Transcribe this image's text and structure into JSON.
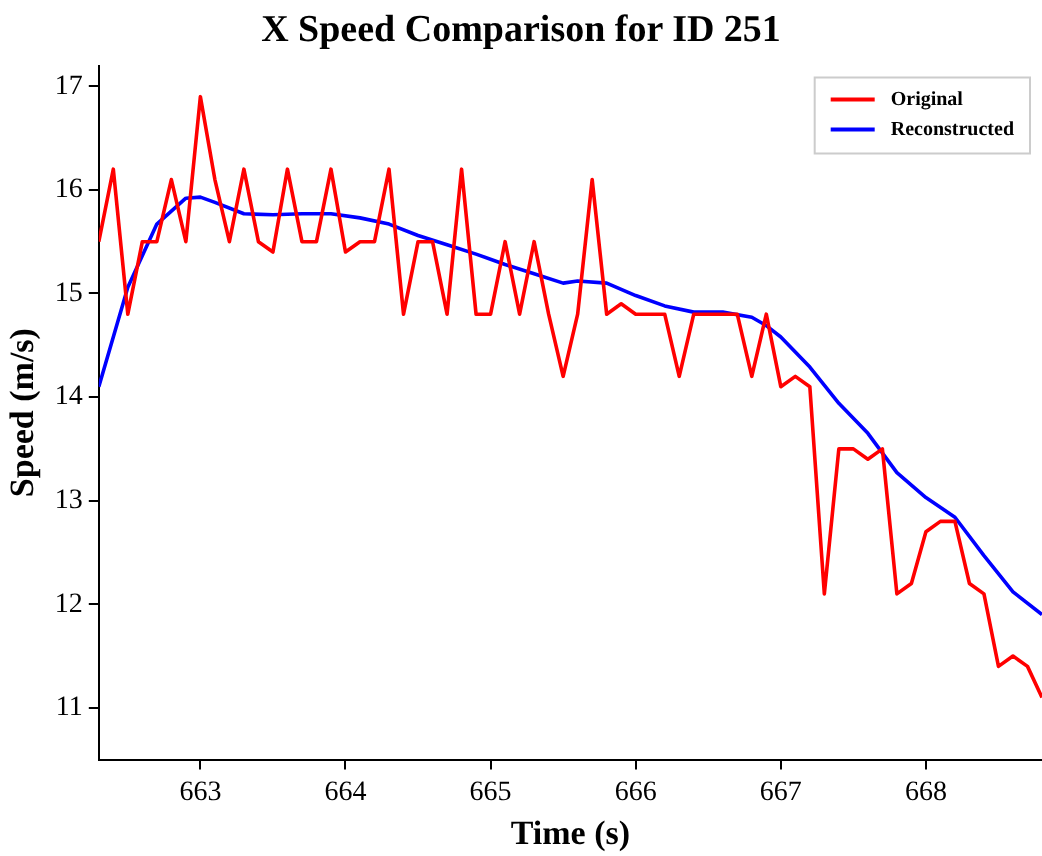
{
  "chart_data": {
    "type": "line",
    "title": "X Speed Comparison for ID 251",
    "xlabel": "Time (s)",
    "ylabel": "Speed (m/s)",
    "xlim": [
      662.3,
      668.8
    ],
    "xticks": [
      663,
      664,
      665,
      666,
      667,
      668
    ],
    "ylim": [
      10.5,
      17.2
    ],
    "yticks": [
      11,
      12,
      13,
      14,
      15,
      16,
      17
    ],
    "grid": false,
    "legend": "top right",
    "marker": "none",
    "line_style": "solid",
    "series": [
      {
        "name": "Original",
        "color": "#ff0000",
        "x": [
          662.3,
          662.4,
          662.5,
          662.6,
          662.7,
          662.8,
          662.9,
          663.0,
          663.1,
          663.2,
          663.3,
          663.4,
          663.5,
          663.6,
          663.7,
          663.8,
          663.9,
          664.0,
          664.1,
          664.2,
          664.3,
          664.4,
          664.5,
          664.6,
          664.7,
          664.8,
          664.9,
          665.0,
          665.1,
          665.2,
          665.3,
          665.4,
          665.5,
          665.6,
          665.7,
          665.8,
          665.9,
          666.0,
          666.1,
          666.2,
          666.3,
          666.4,
          666.5,
          666.6,
          666.7,
          666.8,
          666.9,
          667.0,
          667.1,
          667.2,
          667.3,
          667.4,
          667.5,
          667.6,
          667.7,
          667.8,
          667.9,
          668.0,
          668.1,
          668.2,
          668.3,
          668.4,
          668.5,
          668.6,
          668.7,
          668.8
        ],
        "values": [
          15.5,
          16.2,
          14.8,
          15.5,
          15.5,
          16.1,
          15.5,
          16.9,
          16.1,
          15.5,
          16.2,
          15.5,
          15.4,
          16.2,
          15.5,
          15.5,
          16.2,
          15.4,
          15.5,
          15.5,
          16.2,
          14.8,
          15.5,
          15.5,
          14.8,
          16.2,
          14.8,
          14.8,
          15.5,
          14.8,
          15.5,
          14.8,
          14.2,
          14.8,
          16.1,
          14.8,
          14.9,
          14.8,
          14.8,
          14.8,
          14.2,
          14.8,
          14.8,
          14.8,
          14.8,
          14.2,
          14.8,
          14.1,
          14.2,
          14.1,
          12.1,
          13.5,
          13.5,
          13.4,
          13.5,
          12.1,
          12.2,
          12.7,
          12.8,
          12.8,
          12.2,
          12.1,
          11.4,
          11.5,
          11.4,
          11.1
        ]
      },
      {
        "name": "Reconstructed",
        "color": "#0000ff",
        "x": [
          662.3,
          662.5,
          662.7,
          662.9,
          663.0,
          663.1,
          663.3,
          663.5,
          663.7,
          663.9,
          664.1,
          664.3,
          664.5,
          664.7,
          664.9,
          665.1,
          665.3,
          665.5,
          665.6,
          665.8,
          666.0,
          666.2,
          666.4,
          666.6,
          666.8,
          666.9,
          667.0,
          667.2,
          667.4,
          667.6,
          667.8,
          668.0,
          668.2,
          668.4,
          668.6,
          668.8
        ],
        "values": [
          14.1,
          15.06,
          15.67,
          15.92,
          15.93,
          15.88,
          15.77,
          15.76,
          15.77,
          15.77,
          15.73,
          15.67,
          15.56,
          15.47,
          15.38,
          15.28,
          15.19,
          15.1,
          15.12,
          15.1,
          14.98,
          14.88,
          14.82,
          14.82,
          14.77,
          14.69,
          14.58,
          14.29,
          13.94,
          13.65,
          13.27,
          13.03,
          12.84,
          12.47,
          12.12,
          11.9
        ]
      }
    ]
  }
}
